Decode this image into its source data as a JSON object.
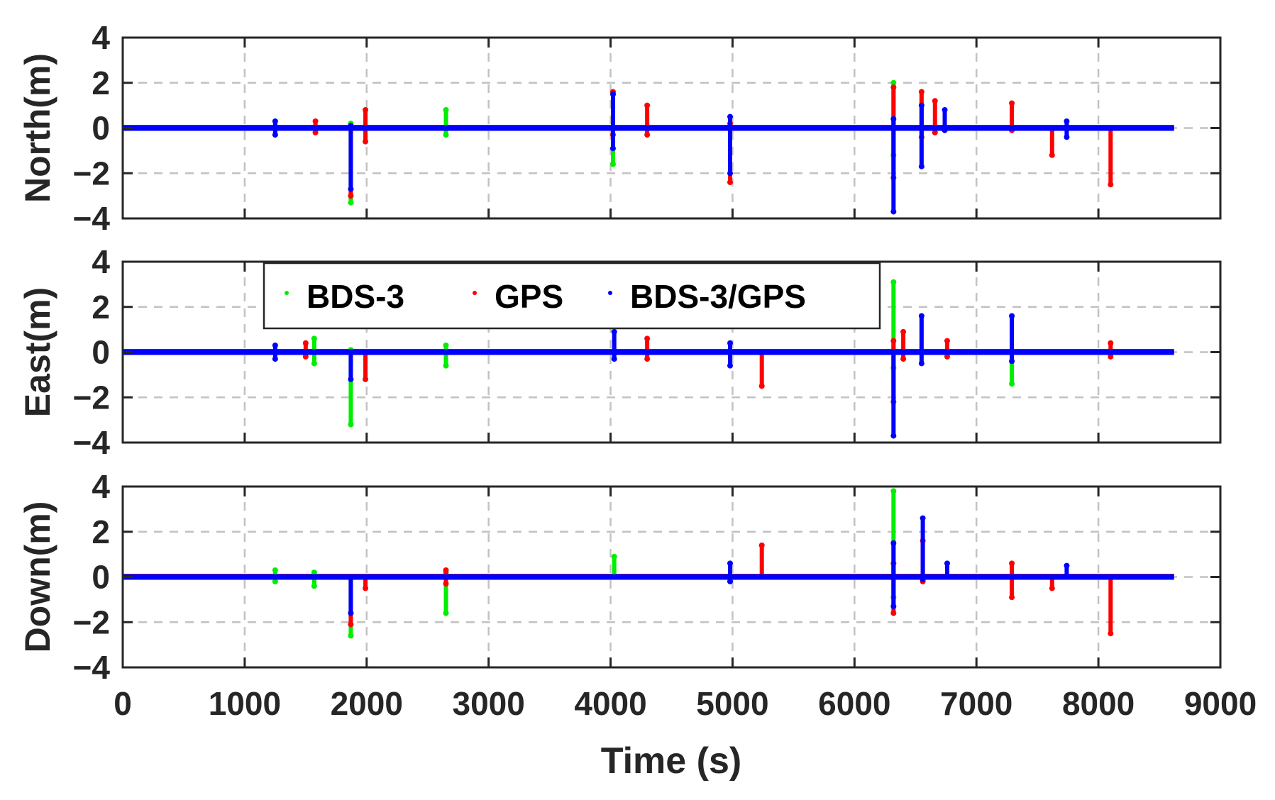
{
  "chart_data": {
    "type": "scatter",
    "title": "",
    "xlabel": "Time (s)",
    "xlim": [
      0,
      9000
    ],
    "x_ticks": [
      "0",
      "1000",
      "2000",
      "3000",
      "4000",
      "5000",
      "6000",
      "7000",
      "8000",
      "9000"
    ],
    "grid": true,
    "legend": {
      "position": "inside top-left of East panel",
      "entries": [
        "BDS-3",
        "GPS",
        "BDS-3/GPS"
      ]
    },
    "series_colors": {
      "BDS-3": "#00ee00",
      "GPS": "#ff0000",
      "BDS-3/GPS": "#0000ff"
    },
    "panels": [
      {
        "ylabel": "North(m)",
        "ylim": [
          -4,
          4
        ],
        "y_ticks": [
          "4",
          "2",
          "0",
          "-2",
          "-4"
        ],
        "baseline": 0,
        "spikes": [
          {
            "t": 1250,
            "series": "BDS-3/GPS",
            "min": -0.3,
            "max": 0.3
          },
          {
            "t": 1580,
            "series": "GPS",
            "min": -0.2,
            "max": 0.3
          },
          {
            "t": 1870,
            "series": "BDS-3",
            "min": -3.3,
            "max": 0.2
          },
          {
            "t": 1870,
            "series": "GPS",
            "min": -3.0,
            "max": 0.1
          },
          {
            "t": 1870,
            "series": "BDS-3/GPS",
            "min": -2.7,
            "max": 0.1
          },
          {
            "t": 1990,
            "series": "GPS",
            "min": -0.6,
            "max": 0.8
          },
          {
            "t": 2650,
            "series": "BDS-3",
            "min": -0.3,
            "max": 0.8
          },
          {
            "t": 4020,
            "series": "BDS-3",
            "min": -1.6,
            "max": 1.5
          },
          {
            "t": 4020,
            "series": "GPS",
            "min": -0.3,
            "max": 1.6
          },
          {
            "t": 4020,
            "series": "BDS-3/GPS",
            "min": -0.9,
            "max": 1.5
          },
          {
            "t": 4300,
            "series": "GPS",
            "min": -0.3,
            "max": 1.0
          },
          {
            "t": 4980,
            "series": "GPS",
            "min": -2.4,
            "max": 0.2
          },
          {
            "t": 4980,
            "series": "BDS-3/GPS",
            "min": -2.0,
            "max": 0.5
          },
          {
            "t": 6320,
            "series": "BDS-3",
            "min": -1.2,
            "max": 2.0
          },
          {
            "t": 6320,
            "series": "GPS",
            "min": -2.2,
            "max": 1.8
          },
          {
            "t": 6320,
            "series": "BDS-3/GPS",
            "min": -3.7,
            "max": 0.4
          },
          {
            "t": 6550,
            "series": "GPS",
            "min": -0.4,
            "max": 1.6
          },
          {
            "t": 6550,
            "series": "BDS-3/GPS",
            "min": -1.7,
            "max": 1.0
          },
          {
            "t": 6660,
            "series": "GPS",
            "min": -0.2,
            "max": 1.2
          },
          {
            "t": 6740,
            "series": "BDS-3/GPS",
            "min": -0.1,
            "max": 0.8
          },
          {
            "t": 7290,
            "series": "GPS",
            "min": -0.1,
            "max": 1.1
          },
          {
            "t": 7620,
            "series": "GPS",
            "min": -1.2,
            "max": 0.0
          },
          {
            "t": 7740,
            "series": "BDS-3/GPS",
            "min": -0.4,
            "max": 0.3
          },
          {
            "t": 8100,
            "series": "GPS",
            "min": -2.5,
            "max": 0.0
          }
        ]
      },
      {
        "ylabel": "East(m)",
        "ylim": [
          -4,
          4
        ],
        "y_ticks": [
          "4",
          "2",
          "0",
          "-2",
          "-4"
        ],
        "baseline": 0,
        "spikes": [
          {
            "t": 1250,
            "series": "BDS-3/GPS",
            "min": -0.3,
            "max": 0.3
          },
          {
            "t": 1500,
            "series": "GPS",
            "min": -0.2,
            "max": 0.4
          },
          {
            "t": 1570,
            "series": "BDS-3",
            "min": -0.5,
            "max": 0.6
          },
          {
            "t": 1870,
            "series": "BDS-3",
            "min": -3.2,
            "max": 0.1
          },
          {
            "t": 1870,
            "series": "BDS-3/GPS",
            "min": -1.2,
            "max": 0.0
          },
          {
            "t": 1990,
            "series": "GPS",
            "min": -1.2,
            "max": 0.0
          },
          {
            "t": 2650,
            "series": "BDS-3",
            "min": -0.6,
            "max": 0.3
          },
          {
            "t": 4030,
            "series": "BDS-3/GPS",
            "min": -0.3,
            "max": 0.9
          },
          {
            "t": 4300,
            "series": "GPS",
            "min": -0.3,
            "max": 0.6
          },
          {
            "t": 4980,
            "series": "BDS-3/GPS",
            "min": -0.6,
            "max": 0.4
          },
          {
            "t": 5240,
            "series": "GPS",
            "min": -1.5,
            "max": 0.0
          },
          {
            "t": 6320,
            "series": "BDS-3",
            "min": -0.7,
            "max": 3.1
          },
          {
            "t": 6320,
            "series": "GPS",
            "min": -2.2,
            "max": 0.5
          },
          {
            "t": 6320,
            "series": "BDS-3/GPS",
            "min": -3.7,
            "max": 0.0
          },
          {
            "t": 6400,
            "series": "GPS",
            "min": -0.3,
            "max": 0.9
          },
          {
            "t": 6550,
            "series": "BDS-3/GPS",
            "min": -0.5,
            "max": 1.6
          },
          {
            "t": 6760,
            "series": "GPS",
            "min": -0.2,
            "max": 0.5
          },
          {
            "t": 7290,
            "series": "BDS-3/GPS",
            "min": -0.4,
            "max": 1.6
          },
          {
            "t": 7290,
            "series": "BDS-3",
            "min": -1.4,
            "max": 0.0
          },
          {
            "t": 8100,
            "series": "GPS",
            "min": -0.2,
            "max": 0.4
          }
        ]
      },
      {
        "ylabel": "Down(m)",
        "ylim": [
          -4,
          4
        ],
        "y_ticks": [
          "4",
          "2",
          "0",
          "-2",
          "-4"
        ],
        "baseline": 0,
        "spikes": [
          {
            "t": 1250,
            "series": "BDS-3",
            "min": -0.2,
            "max": 0.3
          },
          {
            "t": 1570,
            "series": "BDS-3",
            "min": -0.4,
            "max": 0.2
          },
          {
            "t": 1870,
            "series": "BDS-3",
            "min": -2.6,
            "max": 0.0
          },
          {
            "t": 1870,
            "series": "GPS",
            "min": -2.1,
            "max": 0.0
          },
          {
            "t": 1870,
            "series": "BDS-3/GPS",
            "min": -1.6,
            "max": 0.0
          },
          {
            "t": 1990,
            "series": "GPS",
            "min": -0.5,
            "max": 0.0
          },
          {
            "t": 2650,
            "series": "BDS-3",
            "min": -1.6,
            "max": 0.2
          },
          {
            "t": 2650,
            "series": "GPS",
            "min": -0.3,
            "max": 0.3
          },
          {
            "t": 4030,
            "series": "BDS-3",
            "min": 0.0,
            "max": 0.9
          },
          {
            "t": 4980,
            "series": "BDS-3/GPS",
            "min": -0.2,
            "max": 0.6
          },
          {
            "t": 5240,
            "series": "GPS",
            "min": 0.0,
            "max": 1.4
          },
          {
            "t": 6320,
            "series": "BDS-3",
            "min": -0.9,
            "max": 3.8
          },
          {
            "t": 6320,
            "series": "GPS",
            "min": -1.6,
            "max": 0.6
          },
          {
            "t": 6320,
            "series": "BDS-3/GPS",
            "min": -1.3,
            "max": 1.5
          },
          {
            "t": 6560,
            "series": "BDS-3/GPS",
            "min": -0.1,
            "max": 2.6
          },
          {
            "t": 6560,
            "series": "GPS",
            "min": -0.2,
            "max": 1.6
          },
          {
            "t": 6760,
            "series": "BDS-3/GPS",
            "min": 0.0,
            "max": 0.6
          },
          {
            "t": 7290,
            "series": "GPS",
            "min": -0.9,
            "max": 0.6
          },
          {
            "t": 7620,
            "series": "GPS",
            "min": -0.5,
            "max": 0.0
          },
          {
            "t": 7740,
            "series": "BDS-3/GPS",
            "min": 0.0,
            "max": 0.5
          },
          {
            "t": 8100,
            "series": "GPS",
            "min": -2.5,
            "max": 0.0
          }
        ]
      }
    ],
    "data_end_t": 8620
  },
  "legend": {
    "items": [
      {
        "label": "BDS-3",
        "color": "#00ee00"
      },
      {
        "label": "GPS",
        "color": "#ff0000"
      },
      {
        "label": "BDS-3/GPS",
        "color": "#0000ff"
      }
    ]
  },
  "axes": {
    "x_label": "Time (s)",
    "x_ticks": [
      "0",
      "1000",
      "2000",
      "3000",
      "4000",
      "5000",
      "6000",
      "7000",
      "8000",
      "9000"
    ],
    "y_ticks": [
      "4",
      "2",
      "0",
      "−2",
      "−4"
    ],
    "panel_labels": [
      "North(m)",
      "East(m)",
      "Down(m)"
    ]
  }
}
